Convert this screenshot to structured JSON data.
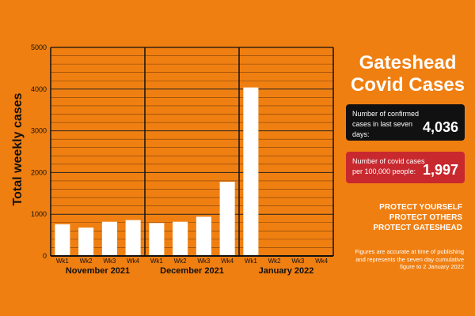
{
  "chart_data": {
    "type": "bar",
    "ylabel": "Total weekly cases",
    "ylim": [
      0,
      5000
    ],
    "yticks": [
      0,
      1000,
      2000,
      3000,
      4000,
      5000
    ],
    "groups": [
      {
        "label": "November 2021",
        "weeks": [
          "Wk1",
          "Wk2",
          "Wk3",
          "Wk4"
        ],
        "values": [
          760,
          680,
          820,
          860
        ]
      },
      {
        "label": "December 2021",
        "weeks": [
          "Wk1",
          "Wk2",
          "Wk3",
          "Wk4"
        ],
        "values": [
          790,
          820,
          940,
          1780
        ]
      },
      {
        "label": "January 2022",
        "weeks": [
          "Wk1",
          "Wk2",
          "Wk3",
          "Wk4"
        ],
        "values": [
          4040,
          null,
          null,
          null
        ]
      }
    ],
    "bar_color": "#ffffff",
    "grid": true
  },
  "panel": {
    "title_line1": "Gateshead",
    "title_line2": "Covid Cases",
    "confirmed_label": "Number of confirmed cases in last seven days:",
    "confirmed_value": "4,036",
    "per100k_label": "Number of covid cases per 100,000 people:",
    "per100k_value": "1,997",
    "slogan": [
      "PROTECT YOURSELF",
      "PROTECT OTHERS",
      "PROTECT GATESHEAD"
    ],
    "footnote": "Figures are accurate at time of publishing and represents the seven day cumulative figure to 2 January 2022"
  },
  "colors": {
    "background": "#f07f11",
    "dark_box": "#111111",
    "red_box": "#c8292f"
  }
}
